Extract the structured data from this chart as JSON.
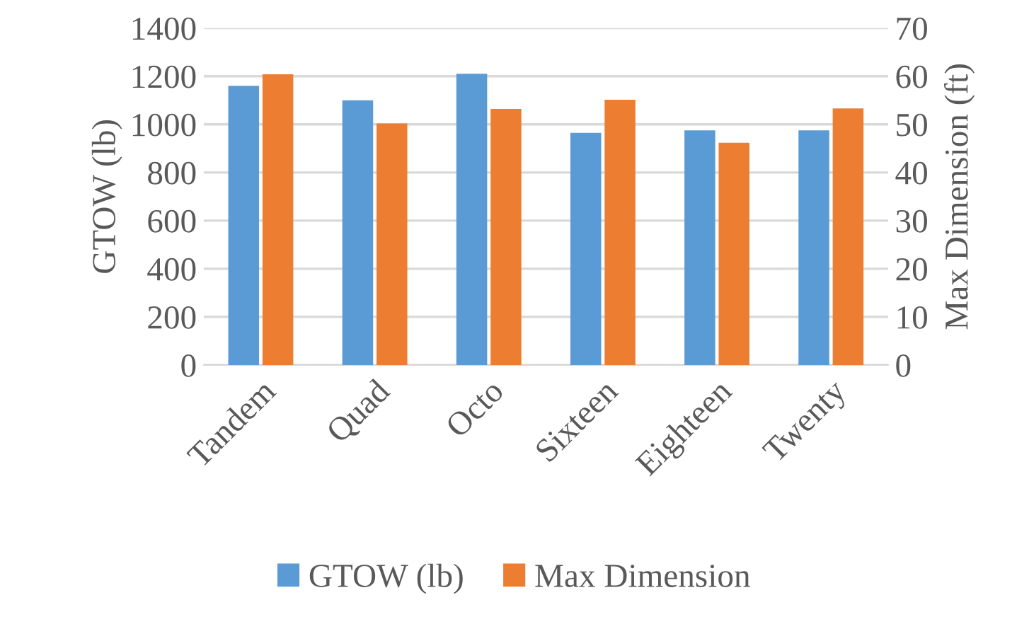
{
  "chart_data": {
    "type": "bar",
    "categories": [
      "Tandem",
      "Quad",
      "Octo",
      "Sixteen",
      "Eighteen",
      "Twenty"
    ],
    "series": [
      {
        "name": "GTOW (lb)",
        "color": "#5b9bd5",
        "values": [
          1160,
          1100,
          1210,
          965,
          975,
          975
        ]
      },
      {
        "name": "Max Dimension",
        "color": "#ed7d31",
        "axis": "y2",
        "values": [
          60.4,
          50.2,
          53.2,
          55.1,
          46.2,
          53.3
        ]
      }
    ],
    "ylabel": "GTOW (lb)",
    "y2label": "Max Dimension (ft)",
    "ylim": [
      0,
      1400
    ],
    "yticks": [
      0,
      200,
      400,
      600,
      800,
      1000,
      1200,
      1400
    ],
    "y2lim": [
      0,
      70
    ],
    "y2ticks": [
      0,
      10,
      20,
      30,
      40,
      50,
      60,
      70
    ],
    "grid": "y",
    "legend": "bottom"
  }
}
